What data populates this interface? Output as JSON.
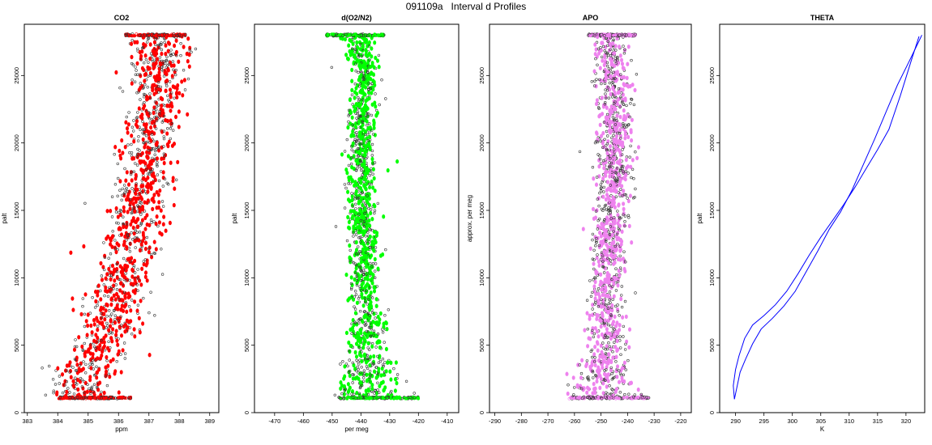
{
  "figure": {
    "title": "091109a   Interval d Profiles"
  },
  "chart_data": [
    {
      "type": "scatter",
      "title": "CO2",
      "xlabel": "ppm",
      "ylabel": "palt",
      "xlim": [
        382.9,
        389.3
      ],
      "ylim": [
        0,
        28800
      ],
      "xticks": [
        383,
        384,
        385,
        386,
        387,
        388,
        389
      ],
      "yticks": [
        0,
        5000,
        10000,
        15000,
        20000,
        25000
      ],
      "color": "#ff0000",
      "profile": {
        "y": [
          1100,
          3000,
          5000,
          7000,
          9000,
          11000,
          13000,
          15000,
          17000,
          19000,
          21000,
          23000,
          25000,
          27000,
          28000
        ],
        "center": [
          384.6,
          385.0,
          385.4,
          385.8,
          386.0,
          386.3,
          386.5,
          386.6,
          386.8,
          386.9,
          387.1,
          387.2,
          387.3,
          387.4,
          387.3
        ],
        "spread": [
          0.9,
          0.8,
          0.75,
          0.7,
          0.7,
          0.7,
          0.7,
          0.7,
          0.7,
          0.7,
          0.7,
          0.7,
          0.7,
          0.7,
          0.8
        ]
      },
      "dense_rows": [
        {
          "y": 1100,
          "from": 384.0,
          "to": 386.4
        },
        {
          "y": 28000,
          "from": 386.2,
          "to": 388.2
        }
      ]
    },
    {
      "type": "scatter",
      "title": "d(O2/N2)",
      "xlabel": "per meg",
      "ylabel": "palt",
      "xlim": [
        -477,
        -406
      ],
      "ylim": [
        0,
        28800
      ],
      "xticks": [
        -470,
        -460,
        -450,
        -440,
        -430,
        -420,
        -410
      ],
      "yticks": [
        0,
        5000,
        10000,
        15000,
        20000,
        25000
      ],
      "color": "#00ff00",
      "profile": {
        "y": [
          1100,
          3000,
          5000,
          7000,
          9000,
          11000,
          13000,
          15000,
          17000,
          19000,
          21000,
          23000,
          25000,
          27000,
          28000
        ],
        "center": [
          -437,
          -437,
          -438,
          -438,
          -439,
          -439,
          -439,
          -440,
          -440,
          -440,
          -440,
          -439,
          -439,
          -440,
          -442
        ],
        "spread": [
          11,
          7,
          5,
          4.5,
          4,
          4,
          4,
          4,
          4,
          4,
          4,
          4,
          4,
          4,
          4
        ]
      },
      "dense_rows": [
        {
          "y": 1100,
          "from": -448,
          "to": -420
        },
        {
          "y": 28000,
          "from": -452,
          "to": -432
        }
      ]
    },
    {
      "type": "scatter",
      "title": "APO",
      "xlabel": "",
      "ylabel": "approx. per meg",
      "xlim": [
        -292,
        -216
      ],
      "ylim": [
        0,
        28800
      ],
      "xticks": [
        -290,
        -280,
        -270,
        -260,
        -250,
        -240,
        -230,
        -220
      ],
      "yticks": [
        0,
        5000,
        10000,
        15000,
        20000,
        25000
      ],
      "color": "#ee82ee",
      "profile": {
        "y": [
          1100,
          3000,
          5000,
          7000,
          9000,
          11000,
          13000,
          15000,
          17000,
          19000,
          21000,
          23000,
          25000,
          27000,
          28000
        ],
        "center": [
          -249,
          -248,
          -248,
          -248,
          -248,
          -247,
          -247,
          -246,
          -245,
          -245,
          -245,
          -245,
          -246,
          -246,
          -247
        ],
        "spread": [
          12,
          8,
          6,
          5.5,
          5,
          5,
          5,
          5,
          5,
          5,
          5,
          5,
          5,
          5,
          5
        ]
      },
      "dense_rows": [
        {
          "y": 1100,
          "from": -262,
          "to": -232
        },
        {
          "y": 28000,
          "from": -255,
          "to": -237
        }
      ]
    },
    {
      "type": "line",
      "title": "THETA",
      "xlabel": "K",
      "ylabel": "palt",
      "xlim": [
        287.2,
        323.3
      ],
      "ylim": [
        0,
        28800
      ],
      "xticks": [
        290,
        295,
        300,
        305,
        310,
        315,
        320
      ],
      "yticks": [
        0,
        5000,
        10000,
        15000,
        20000,
        25000
      ],
      "color": "#0000ff",
      "series": [
        {
          "x": [
            289.8,
            289.6,
            290.0,
            290.6,
            291.6,
            293.0,
            295.0,
            297.0,
            299.0,
            301.0,
            303.0,
            305.0,
            307.0,
            309.0,
            311.0,
            313.0,
            315.0,
            317.0,
            319.0,
            321.0,
            322.3
          ],
          "y": [
            1000,
            2000,
            3200,
            4200,
            5500,
            6500,
            7200,
            8000,
            9000,
            10300,
            11700,
            13000,
            14200,
            15400,
            16700,
            18100,
            19500,
            21000,
            23500,
            26200,
            27900
          ]
        },
        {
          "x": [
            289.8,
            290.2,
            290.8,
            291.8,
            293.0,
            294.5,
            296.5,
            298.5,
            300.5,
            302.5,
            304.5,
            306.5,
            308.5,
            310.5,
            312.5,
            314.5,
            316.5,
            318.5,
            320.5,
            322.0,
            322.8
          ],
          "y": [
            1000,
            1800,
            3000,
            4000,
            5100,
            6200,
            7000,
            7900,
            9000,
            10500,
            12000,
            13600,
            14900,
            16500,
            18400,
            20300,
            22300,
            24300,
            26000,
            27300,
            28000
          ]
        }
      ]
    }
  ]
}
